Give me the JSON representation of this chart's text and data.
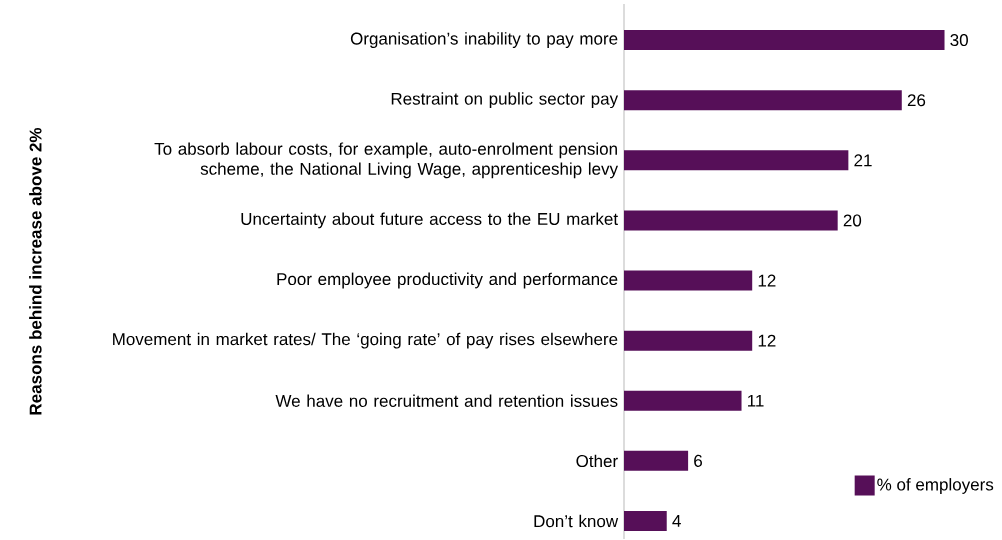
{
  "chart_data": {
    "type": "bar",
    "orientation": "horizontal",
    "ylabel": "Reasons behind increase above 2%",
    "categories": [
      "Organisation’s inability to pay more",
      "Restraint on public sector pay",
      "To absorb labour costs, for example, auto-enrolment pension scheme, the National Living Wage, apprenticeship levy",
      "Uncertainty about future access to the EU market",
      "Poor employee productivity and performance",
      "Movement in market rates/ The ‘going rate’ of pay rises elsewhere",
      "We have no recruitment and retention issues",
      "Other",
      "Don’t know"
    ],
    "series": [
      {
        "name": "% of employers",
        "color": "#560f58",
        "values": [
          30,
          26,
          21,
          20,
          12,
          12,
          11,
          6,
          4
        ]
      }
    ],
    "data_labels": true,
    "legend": "bottom right"
  }
}
